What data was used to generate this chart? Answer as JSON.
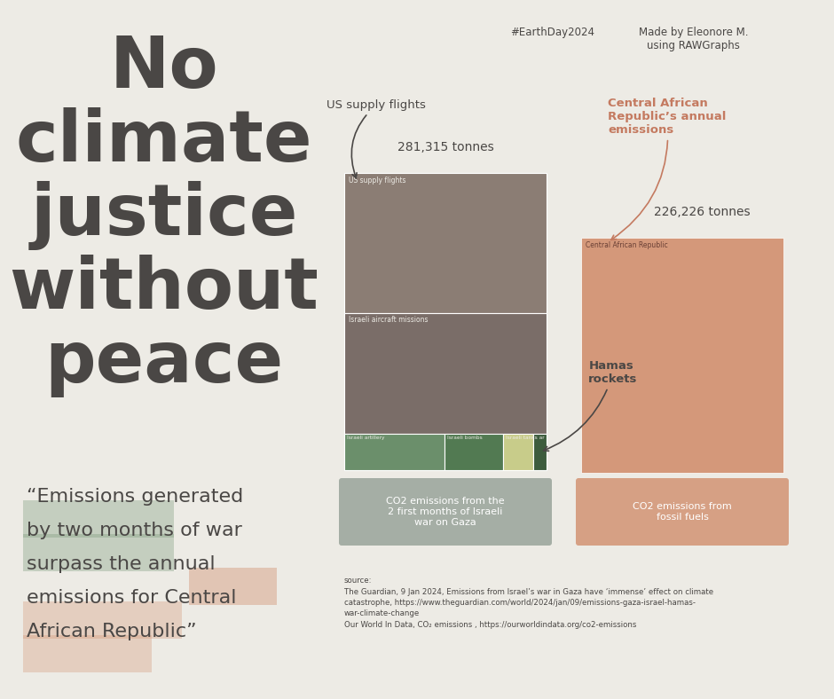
{
  "bg_color": "#EDEBE5",
  "title_text": "No\nclimate\njustice\nwithout\npeace",
  "title_color": "#4A4745",
  "title_fontsize": 58,
  "hashtag": "#EarthDay2024",
  "credit": "Made by Eleonore M.\nusing RAWGraphs",
  "quote_lines": [
    "“Emissions generated",
    "by two months of war",
    "surpass the annual",
    "emissions for Central",
    "African Republic”"
  ],
  "quote_highlight_green_lines": [
    0,
    1
  ],
  "quote_highlight_salmon_lines": [
    2,
    3,
    4
  ],
  "quote_annual_partial": true,
  "quote_color": "#4A4745",
  "quote_fontsize": 16,
  "treemap1_label": "281,315 tonnes",
  "treemap1_annotation": "US supply flights",
  "seg_us_value": 133000,
  "seg_aircraft_value": 114000,
  "seg_artillery_value": 17000,
  "seg_bombs_value": 10000,
  "seg_tanks_value": 5000,
  "seg_hamas_value": 2315,
  "seg_total": 281315,
  "color_us": "#8B7D74",
  "color_aircraft": "#7A6D68",
  "color_artillery": "#6B8F6B",
  "color_bombs": "#527A52",
  "color_tanks": "#C8CC8A",
  "color_hamas": "#3D5C3D",
  "treemap2_label": "226,226 tonnes",
  "treemap2_annotation_color": "#C47A60",
  "treemap2_color": "#D4987A",
  "treemap2_inner_label": "Central African Republic",
  "label1_box_color": "#9EA89E",
  "label1_text": "CO2 emissions from the\n2 first months of Israeli\nwar on Gaza",
  "label2_box_color": "#D4987A",
  "label2_text": "CO2 emissions from\nfossil fuels",
  "source_text": "source:\nThe Guardian, 9 Jan 2024, Emissions from Israel’s war in Gaza have ‘immense’ effect on climate\ncatastrophe, https://www.theguardian.com/world/2024/jan/09/emissions-gaza-israel-hamas-\nwar-climate-change\nOur World In Data, CO₂ emissions , https://ourworldindata.org/co2-emissions"
}
